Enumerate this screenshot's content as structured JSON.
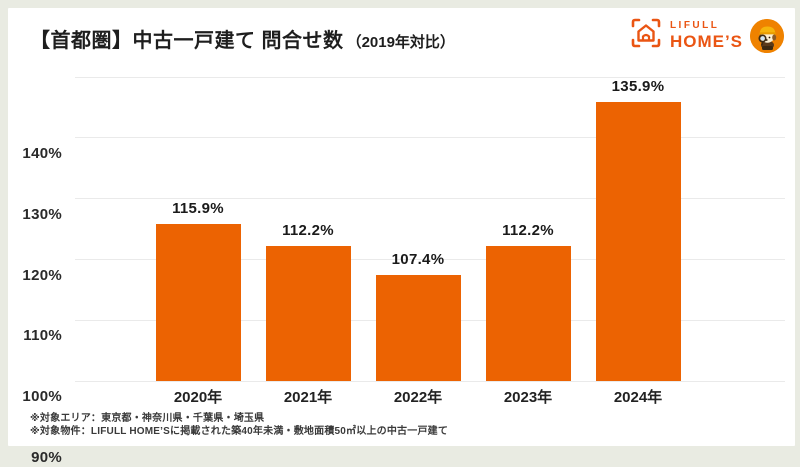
{
  "page": {
    "title_main": "【首都圏】中古一戸建て 問合せ数",
    "title_sub": "（2019年対比）"
  },
  "logo": {
    "brand_top": "LIFULL",
    "brand_bottom": "HOME’S"
  },
  "chart_data": {
    "type": "bar",
    "title": "【首都圏】中古一戸建て 問合せ数（2019年対比）",
    "categories": [
      "2020年",
      "2021年",
      "2022年",
      "2023年",
      "2024年"
    ],
    "values": [
      115.9,
      112.2,
      107.4,
      112.2,
      135.9
    ],
    "value_labels": [
      "115.9%",
      "112.2%",
      "107.4%",
      "112.2%",
      "135.9%"
    ],
    "y_ticks": [
      "140%",
      "130%",
      "120%",
      "110%",
      "100%",
      "90%"
    ],
    "ylim": [
      90,
      140
    ],
    "grid": true,
    "legend": "none",
    "bar_color": "#ec6302"
  },
  "colors": {
    "brand_orange": "#ea5513",
    "bar_orange": "#ec6302",
    "mascot_circle": "#ef8200",
    "page_border": "#e9ebe2",
    "gridline": "#eaeaea"
  },
  "footnotes": [
    "※対象エリア：東京都・神奈川県・千葉県・埼玉県",
    "※対象物件：LIFULL HOME’Sに掲載された築40年未満・敷地面積50㎡以上の中古一戸建て"
  ]
}
